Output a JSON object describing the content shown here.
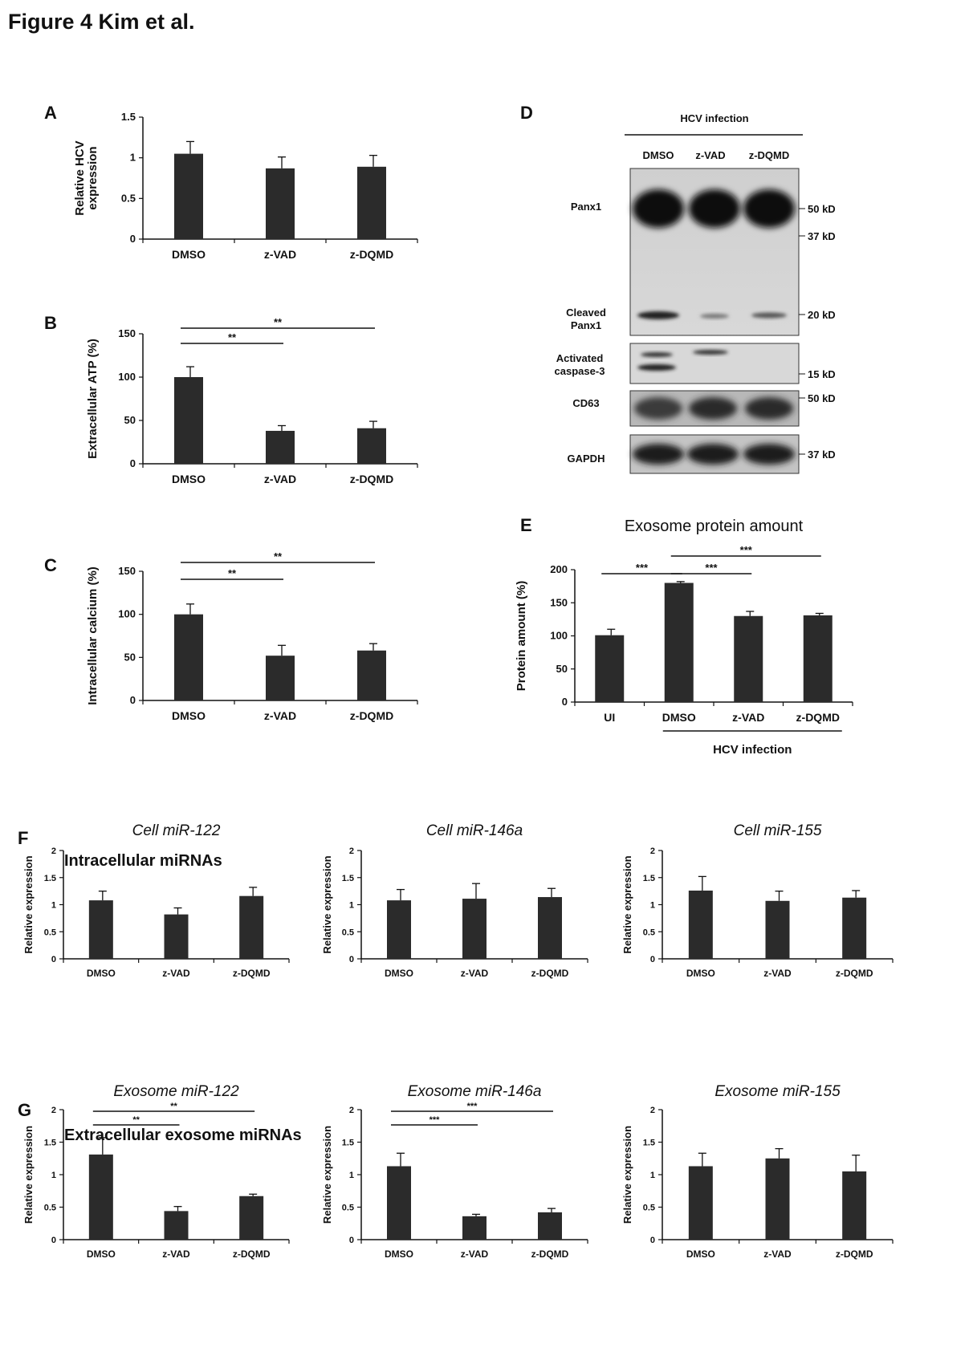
{
  "figure_title": "Figure 4 Kim et al.",
  "panel_labels": {
    "A": "A",
    "B": "B",
    "C": "C",
    "D": "D",
    "E": "E",
    "F": "F",
    "G": "G"
  },
  "section_titles": {
    "F": "Intracellular miRNAs",
    "G": "Extracellular exosome miRNAs"
  },
  "colors": {
    "bar": "#2b2b2b",
    "axis": "#111111",
    "text": "#111111"
  },
  "blot": {
    "header": "HCV infection",
    "lanes": [
      "DMSO",
      "z-VAD",
      "z-DQMD"
    ],
    "rows": [
      {
        "name": "Panx1",
        "markers": [
          "50 kD",
          "37 kD"
        ]
      },
      {
        "name": "Cleaved\nPanx1",
        "markers": [
          "20 kD"
        ]
      },
      {
        "name": "Activated\ncaspase-3",
        "markers": [
          "15 kD"
        ]
      },
      {
        "name": "CD63",
        "markers": [
          "50 kD"
        ]
      },
      {
        "name": "GAPDH",
        "markers": [
          "37 kD"
        ]
      }
    ]
  },
  "chart_data": [
    {
      "id": "A",
      "type": "bar",
      "title": "",
      "categories": [
        "DMSO",
        "z-VAD",
        "z-DQMD"
      ],
      "values": [
        1.05,
        0.87,
        0.89
      ],
      "errors": [
        0.15,
        0.14,
        0.14
      ],
      "ylabel": "Relative HCV\nexpression",
      "ylim": [
        0,
        1.5
      ],
      "yticks": [
        "0",
        "0.5",
        "1",
        "1.5"
      ],
      "significance": []
    },
    {
      "id": "B",
      "type": "bar",
      "title": "",
      "categories": [
        "DMSO",
        "z-VAD",
        "z-DQMD"
      ],
      "values": [
        100,
        38,
        41
      ],
      "errors": [
        12,
        6,
        8
      ],
      "ylabel": "Extracellular ATP (%)",
      "ylim": [
        0,
        150
      ],
      "yticks": [
        "0",
        "50",
        "100",
        "150"
      ],
      "significance": [
        {
          "from": 0,
          "to": 1,
          "label": "**"
        },
        {
          "from": 0,
          "to": 2,
          "label": "**"
        }
      ]
    },
    {
      "id": "C",
      "type": "bar",
      "title": "",
      "categories": [
        "DMSO",
        "z-VAD",
        "z-DQMD"
      ],
      "values": [
        100,
        52,
        58
      ],
      "errors": [
        12,
        12,
        8
      ],
      "ylabel": "Intracellular calcium (%)",
      "ylim": [
        0,
        150
      ],
      "yticks": [
        "0",
        "50",
        "100",
        "150"
      ],
      "significance": [
        {
          "from": 0,
          "to": 1,
          "label": "**"
        },
        {
          "from": 0,
          "to": 2,
          "label": "**"
        }
      ]
    },
    {
      "id": "E",
      "type": "bar",
      "title": "Exosome protein amount",
      "categories": [
        "UI",
        "DMSO",
        "z-VAD",
        "z-DQMD"
      ],
      "values": [
        101,
        180,
        130,
        131
      ],
      "errors": [
        9,
        2,
        7,
        3
      ],
      "ylabel": "Protein amount (%)",
      "ylim": [
        0,
        200
      ],
      "yticks": [
        "0",
        "50",
        "100",
        "150",
        "200"
      ],
      "group_label": "HCV infection",
      "significance": [
        {
          "from": 0,
          "to": 1,
          "label": "***"
        },
        {
          "from": 1,
          "to": 2,
          "label": "***"
        },
        {
          "from": 1,
          "to": 3,
          "label": "***"
        }
      ]
    },
    {
      "id": "F1",
      "type": "bar",
      "title": "Cell miR-122",
      "categories": [
        "DMSO",
        "z-VAD",
        "z-DQMD"
      ],
      "values": [
        1.08,
        0.82,
        1.16
      ],
      "errors": [
        0.17,
        0.12,
        0.16
      ],
      "ylabel": "Relative expression",
      "ylim": [
        0,
        2
      ],
      "yticks": [
        "0",
        "0.5",
        "1",
        "1.5",
        "2"
      ],
      "significance": []
    },
    {
      "id": "F2",
      "type": "bar",
      "title": "Cell  miR-146a",
      "categories": [
        "DMSO",
        "z-VAD",
        "z-DQMD"
      ],
      "values": [
        1.08,
        1.11,
        1.14
      ],
      "errors": [
        0.2,
        0.28,
        0.16
      ],
      "ylabel": "Relative expression",
      "ylim": [
        0,
        2
      ],
      "yticks": [
        "0",
        "0.5",
        "1",
        "1.5",
        "2"
      ],
      "significance": []
    },
    {
      "id": "F3",
      "type": "bar",
      "title": "Cell miR-155",
      "categories": [
        "DMSO",
        "z-VAD",
        "z-DQMD"
      ],
      "values": [
        1.26,
        1.07,
        1.13
      ],
      "errors": [
        0.26,
        0.18,
        0.13
      ],
      "ylabel": "Relative expression",
      "ylim": [
        0,
        2
      ],
      "yticks": [
        "0",
        "0.5",
        "1",
        "1.5",
        "2"
      ],
      "significance": []
    },
    {
      "id": "G1",
      "type": "bar",
      "title": "Exosome miR-122",
      "categories": [
        "DMSO",
        "z-VAD",
        "z-DQMD"
      ],
      "values": [
        1.31,
        0.44,
        0.67
      ],
      "errors": [
        0.26,
        0.07,
        0.03
      ],
      "ylabel": "Relative expression",
      "ylim": [
        0,
        2
      ],
      "yticks": [
        "0",
        "0.5",
        "1",
        "1.5",
        "2"
      ],
      "significance": [
        {
          "from": 0,
          "to": 1,
          "label": "**"
        },
        {
          "from": 0,
          "to": 2,
          "label": "**"
        }
      ]
    },
    {
      "id": "G2",
      "type": "bar",
      "title": "Exosome  miR-146a",
      "categories": [
        "DMSO",
        "z-VAD",
        "z-DQMD"
      ],
      "values": [
        1.13,
        0.36,
        0.42
      ],
      "errors": [
        0.2,
        0.03,
        0.06
      ],
      "ylabel": "Relative expression",
      "ylim": [
        0,
        2
      ],
      "yticks": [
        "0",
        "0.5",
        "1",
        "1.5",
        "2"
      ],
      "significance": [
        {
          "from": 0,
          "to": 1,
          "label": "***"
        },
        {
          "from": 0,
          "to": 2,
          "label": "***"
        }
      ]
    },
    {
      "id": "G3",
      "type": "bar",
      "title": "Exosome miR-155",
      "categories": [
        "DMSO",
        "z-VAD",
        "z-DQMD"
      ],
      "values": [
        1.13,
        1.25,
        1.05
      ],
      "errors": [
        0.2,
        0.15,
        0.25
      ],
      "ylabel": "Relative expression",
      "ylim": [
        0,
        2
      ],
      "yticks": [
        "0",
        "0.5",
        "1",
        "1.5",
        "2"
      ],
      "significance": []
    }
  ]
}
